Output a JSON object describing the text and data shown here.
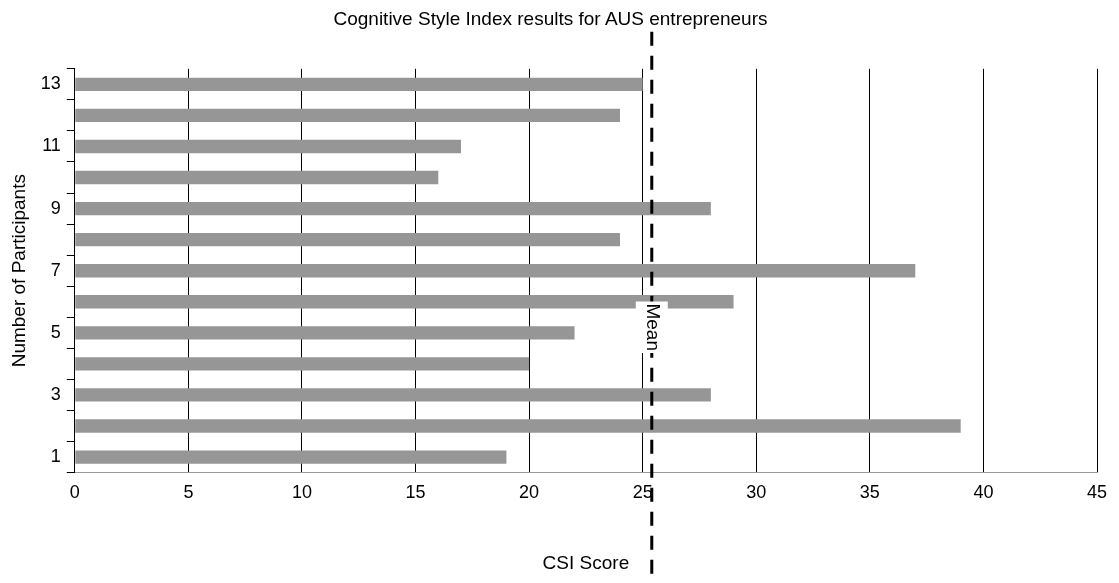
{
  "chart_data": {
    "type": "bar",
    "orientation": "horizontal",
    "title": "Cognitive Style Index results for AUS entrepreneurs",
    "xlabel": "CSI Score",
    "ylabel": "Number of Participants",
    "categories": [
      "13",
      null,
      "11",
      null,
      "9",
      null,
      "7",
      null,
      "5",
      null,
      "3",
      null,
      "1"
    ],
    "values": [
      25,
      24,
      17,
      16,
      28,
      24,
      37,
      29,
      22,
      20,
      28,
      39,
      19
    ],
    "color": "#969696",
    "xlim": [
      0,
      45
    ],
    "xticks": [
      0,
      5,
      10,
      15,
      20,
      25,
      30,
      35,
      40,
      45
    ],
    "grid": "x",
    "legend": false,
    "ref_lines": [
      {
        "axis": "x",
        "value": 25.4,
        "label": "Mean",
        "color": "#000000",
        "line_style": "dashed"
      }
    ]
  }
}
